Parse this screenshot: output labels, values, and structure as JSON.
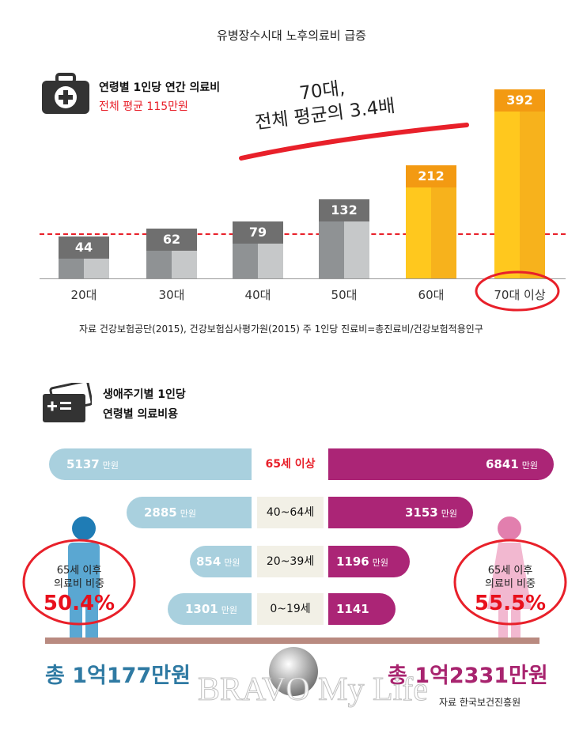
{
  "title": "유병장수시대 노후의료비 급증",
  "section1": {
    "heading": "연령별 1인당 연간 의료비",
    "average": "전체 평균 115만원",
    "callout_line1": "70대,",
    "callout_line2": "전체 평균의 3.4배",
    "source": "자료 건강보험공단(2015), 건강보험심사평가원(2015)  주 1인당 진료비=총진료비/건강보험적용인구"
  },
  "section2": {
    "heading_line1": "생애주기별 1인당",
    "heading_line2": "연령별 의료비용",
    "unit": "만원",
    "rows": [
      {
        "age": "65세 이상",
        "male": "5137",
        "female": "6841"
      },
      {
        "age": "40~64세",
        "male": "2885",
        "female": "3153"
      },
      {
        "age": "20~39세",
        "male": "854",
        "female": "1196"
      },
      {
        "age": "0~19세",
        "male": "1301",
        "female": "1141"
      }
    ],
    "male_caption1": "65세 이후",
    "male_caption2": "의료비 비중",
    "male_pct": "50.4%",
    "female_caption1": "65세 이후",
    "female_caption2": "의료비 비중",
    "female_pct": "55.5%",
    "male_total": "총 1억177만원",
    "female_total": "총 1억2331만원",
    "source": "자료 한국보건진흥원",
    "watermark": "BRAVO My Life"
  },
  "chart_data": {
    "type": "bar",
    "title": "연령별 1인당 연간 의료비",
    "categories": [
      "20대",
      "30대",
      "40대",
      "50대",
      "60대",
      "70대 이상"
    ],
    "values": [
      44,
      62,
      79,
      132,
      212,
      392
    ],
    "value_labels": [
      "44",
      "62",
      "79",
      "132",
      "212",
      "392"
    ],
    "reference_line": 115,
    "unit": "만원"
  },
  "colors": {
    "gray": "#8f9294",
    "gray_light": "#c6c8c9",
    "gray_label": "#6f6f6f",
    "yellow": "#ffc81e",
    "orange": "#f39a12",
    "male": "#2f7aa3",
    "female": "#a8246f",
    "accent": "#e8202a"
  }
}
